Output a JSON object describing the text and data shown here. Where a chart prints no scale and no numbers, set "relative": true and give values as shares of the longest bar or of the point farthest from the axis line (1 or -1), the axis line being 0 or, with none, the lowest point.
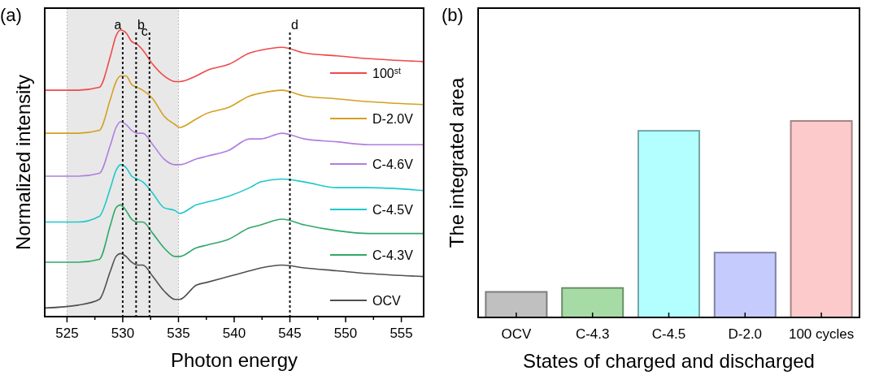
{
  "chart_data": [
    {
      "type": "line",
      "title": "(a)",
      "xlabel": "Photon energy",
      "ylabel": "Normalized intensity",
      "relative": true,
      "xlim": [
        523,
        557
      ],
      "xticks": [
        525,
        {
          "value": 527.5,
          "label": null
        },
        530,
        {
          "value": 532.5,
          "label": null
        },
        535,
        {
          "value": 537.5,
          "label": null
        },
        540,
        {
          "value": 542.5,
          "label": null
        },
        545,
        {
          "value": 547.5,
          "label": null
        },
        550,
        {
          "value": 552.5,
          "label": null
        },
        555
      ],
      "x": [
        523,
        526,
        527.9,
        528.9,
        529.4,
        529.8,
        530.3,
        530.8,
        531.3,
        531.8,
        532.7,
        533.7,
        534.7,
        535.1,
        536.6,
        537.6,
        539.5,
        541.4,
        542.4,
        544.3,
        546.3,
        549.2,
        552.1,
        557
      ],
      "legend": "right",
      "line_style": "solid",
      "marker": "none",
      "series": [
        {
          "name": "100$^{st}$",
          "color": "#f04848",
          "values": [
            0.79,
            0.79,
            0.8,
            0.91,
            0.98,
            1,
            0.99,
            0.96,
            0.95,
            0.93,
            0.88,
            0.84,
            0.82,
            0.82,
            0.84,
            0.86,
            0.88,
            0.92,
            0.93,
            0.94,
            0.92,
            0.91,
            0.9,
            0.89
          ]
        },
        {
          "name": "D-2.0V",
          "color": "#d4a020",
          "values": [
            0.64,
            0.64,
            0.65,
            0.76,
            0.82,
            0.84,
            0.84,
            0.81,
            0.8,
            0.79,
            0.76,
            0.7,
            0.67,
            0.66,
            0.69,
            0.71,
            0.73,
            0.77,
            0.78,
            0.79,
            0.77,
            0.76,
            0.75,
            0.74
          ]
        },
        {
          "name": "C-4.6V",
          "color": "#b07ee0",
          "values": [
            0.49,
            0.49,
            0.5,
            0.6,
            0.66,
            0.68,
            0.67,
            0.65,
            0.64,
            0.64,
            0.6,
            0.55,
            0.53,
            0.53,
            0.55,
            0.56,
            0.58,
            0.62,
            0.62,
            0.64,
            0.62,
            0.61,
            0.6,
            0.6
          ]
        },
        {
          "name": "C-4.5V",
          "color": "#1ec8cc",
          "values": [
            0.33,
            0.33,
            0.35,
            0.45,
            0.51,
            0.53,
            0.52,
            0.49,
            0.48,
            0.47,
            0.43,
            0.38,
            0.37,
            0.36,
            0.39,
            0.4,
            0.42,
            0.45,
            0.47,
            0.48,
            0.47,
            0.45,
            0.45,
            0.44
          ]
        },
        {
          "name": "C-4.3V",
          "color": "#30a868",
          "values": [
            0.19,
            0.19,
            0.2,
            0.32,
            0.38,
            0.39,
            0.37,
            0.34,
            0.33,
            0.33,
            0.29,
            0.24,
            0.21,
            0.21,
            0.24,
            0.25,
            0.27,
            0.31,
            0.32,
            0.34,
            0.32,
            0.3,
            0.29,
            0.29
          ]
        },
        {
          "name": "OCV",
          "color": "#505050",
          "values": [
            0.03,
            0.04,
            0.06,
            0.16,
            0.21,
            0.22,
            0.21,
            0.19,
            0.18,
            0.18,
            0.14,
            0.09,
            0.06,
            0.06,
            0.11,
            0.12,
            0.14,
            0.16,
            0.17,
            0.18,
            0.17,
            0.16,
            0.15,
            0.14
          ]
        }
      ],
      "bands": [
        {
          "axis": "x",
          "from": 525,
          "to": 535,
          "color": "#e8e8e8"
        }
      ],
      "ref_lines": [
        {
          "axis": "x",
          "value": 530,
          "label": "a",
          "line_style": "dotted"
        },
        {
          "axis": "x",
          "value": 531.2,
          "label": "b",
          "line_style": "dotted"
        },
        {
          "axis": "x",
          "value": 532.4,
          "label": "c",
          "line_style": "dotted"
        },
        {
          "axis": "x",
          "value": 545,
          "label": "d",
          "line_style": "dotted"
        }
      ]
    },
    {
      "type": "bar",
      "title": "(b)",
      "xlabel": "States of charged and discharged",
      "ylabel": "The integrated area",
      "relative": true,
      "categories": [
        "OCV",
        "C-4.3",
        "C-4.5",
        "D-2.0",
        "100 cycles"
      ],
      "values": [
        0.13,
        0.15,
        0.95,
        0.33,
        1
      ],
      "colors": [
        "#c0c0c0",
        "#a6dba6",
        "#b3ffff",
        "#c5cbfc",
        "#fccaca"
      ]
    }
  ]
}
